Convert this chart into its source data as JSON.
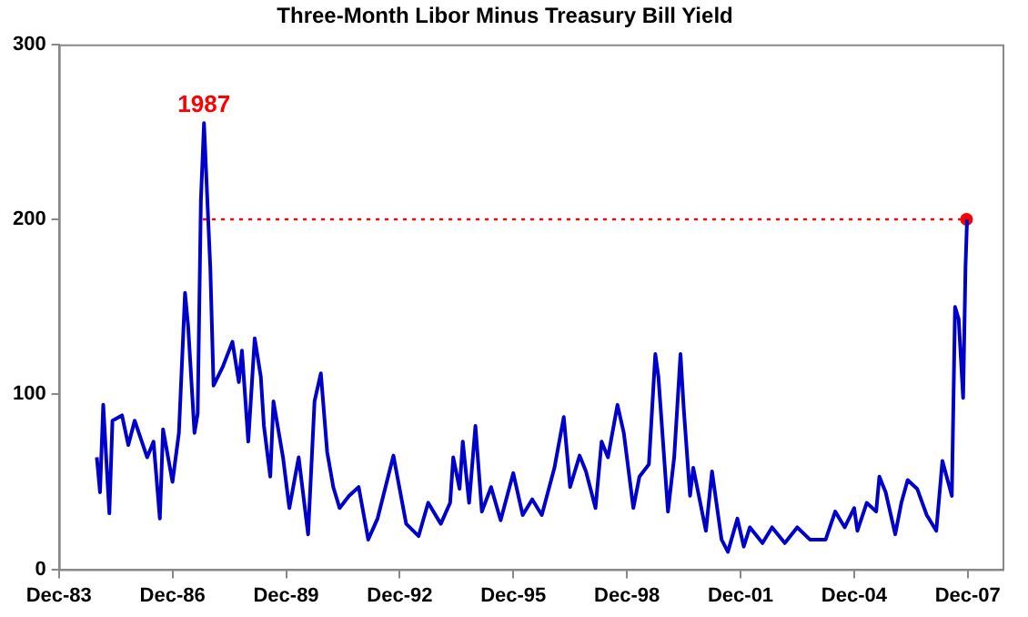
{
  "chart_data": {
    "type": "line",
    "title": "Three-Month Libor Minus Treasury Bill Yield",
    "xlim": [
      "1983-12-01",
      "2008-11-01"
    ],
    "xticks": [
      {
        "value": "1983-12-01",
        "label": "Dec-83"
      },
      {
        "value": "1986-12-01",
        "label": "Dec-86"
      },
      {
        "value": "1989-12-01",
        "label": "Dec-89"
      },
      {
        "value": "1992-12-01",
        "label": "Dec-92"
      },
      {
        "value": "1995-12-01",
        "label": "Dec-95"
      },
      {
        "value": "1998-12-01",
        "label": "Dec-98"
      },
      {
        "value": "2001-12-01",
        "label": "Dec-01"
      },
      {
        "value": "2004-12-01",
        "label": "Dec-04"
      },
      {
        "value": "2007-12-01",
        "label": "Dec-07"
      }
    ],
    "ylim": [
      0,
      300
    ],
    "yticks": [
      0,
      100,
      200,
      300
    ],
    "grid": false,
    "legend": false,
    "marker": "none",
    "line_style": "solid",
    "annotations": [
      {
        "text": "1987",
        "x": "1987-10-01",
        "y": 255
      }
    ],
    "series": [
      {
        "color": "#0000cc",
        "x": [
          "1984-12-01",
          "1985-01-01",
          "1985-02-01",
          "1985-04-01",
          "1985-05-01",
          "1985-08-01",
          "1985-10-01",
          "1985-12-01",
          "1986-04-01",
          "1986-06-01",
          "1986-08-01",
          "1986-09-01",
          "1986-12-01",
          "1987-02-01",
          "1987-04-01",
          "1987-05-01",
          "1987-07-01",
          "1987-08-01",
          "1987-09-01",
          "1987-10-01",
          "1987-12-01",
          "1988-01-01",
          "1988-04-01",
          "1988-07-01",
          "1988-09-01",
          "1988-10-01",
          "1988-12-01",
          "1989-02-01",
          "1989-04-01",
          "1989-05-01",
          "1989-07-01",
          "1989-08-01",
          "1989-11-01",
          "1990-01-01",
          "1990-04-01",
          "1990-07-01",
          "1990-09-01",
          "1990-11-01",
          "1991-01-01",
          "1991-03-01",
          "1991-05-01",
          "1991-08-01",
          "1991-11-01",
          "1992-02-01",
          "1992-05-01",
          "1992-10-01",
          "1993-02-01",
          "1993-06-01",
          "1993-09-01",
          "1994-01-01",
          "1994-04-01",
          "1994-05-01",
          "1994-07-01",
          "1994-08-01",
          "1994-10-01",
          "1994-12-01",
          "1995-02-01",
          "1995-05-01",
          "1995-08-01",
          "1995-12-01",
          "1996-03-01",
          "1996-06-01",
          "1996-09-01",
          "1997-01-01",
          "1997-04-01",
          "1997-06-01",
          "1997-09-01",
          "1997-11-01",
          "1998-02-01",
          "1998-04-01",
          "1998-06-01",
          "1998-09-01",
          "1998-11-01",
          "1999-02-01",
          "1999-04-01",
          "1999-07-01",
          "1999-09-01",
          "1999-10-01",
          "2000-01-01",
          "2000-03-01",
          "2000-05-01",
          "2000-06-01",
          "2000-08-01",
          "2000-09-01",
          "2001-01-01",
          "2001-03-01",
          "2001-06-01",
          "2001-08-01",
          "2001-11-01",
          "2002-01-01",
          "2002-03-01",
          "2002-07-01",
          "2002-10-01",
          "2003-02-01",
          "2003-06-01",
          "2003-10-01",
          "2004-03-01",
          "2004-06-01",
          "2004-09-01",
          "2004-12-01",
          "2005-01-01",
          "2005-04-01",
          "2005-07-01",
          "2005-08-01",
          "2005-10-01",
          "2006-01-01",
          "2006-03-01",
          "2006-05-01",
          "2006-08-01",
          "2006-11-01",
          "2007-02-01",
          "2007-04-01",
          "2007-07-01",
          "2007-08-01",
          "2007-09-05",
          "2007-10-18",
          "2007-11-10",
          "2007-11-25"
        ],
        "values": [
          64,
          44,
          94,
          32,
          85,
          88,
          71,
          85,
          64,
          73,
          29,
          80,
          50,
          78,
          158,
          139,
          78,
          89,
          211,
          255,
          172,
          105,
          116,
          130,
          107,
          125,
          73,
          132,
          110,
          82,
          53,
          96,
          64,
          35,
          64,
          20,
          96,
          112,
          67,
          47,
          35,
          42,
          47,
          17,
          29,
          65,
          26,
          19,
          38,
          26,
          38,
          64,
          46,
          73,
          38,
          82,
          33,
          47,
          28,
          55,
          31,
          40,
          31,
          58,
          87,
          47,
          65,
          56,
          35,
          73,
          64,
          94,
          78,
          35,
          53,
          60,
          123,
          110,
          33,
          64,
          123,
          92,
          42,
          58,
          22,
          56,
          17,
          10,
          29,
          13,
          24,
          15,
          24,
          15,
          24,
          17,
          17,
          33,
          24,
          35,
          22,
          38,
          33,
          53,
          44,
          20,
          38,
          51,
          46,
          31,
          22,
          62,
          42,
          150,
          143,
          98,
          173,
          200
        ]
      },
      {
        "type": "line",
        "color": "#ff0000",
        "line_style": "dotted",
        "marker": "none",
        "x": [
          "1987-09-20",
          "2007-11-20"
        ],
        "values": [
          200,
          200
        ]
      },
      {
        "type": "scatter",
        "color": "#ff0000",
        "marker": "circle",
        "x": [
          "2007-11-20"
        ],
        "values": [
          200
        ]
      }
    ]
  }
}
